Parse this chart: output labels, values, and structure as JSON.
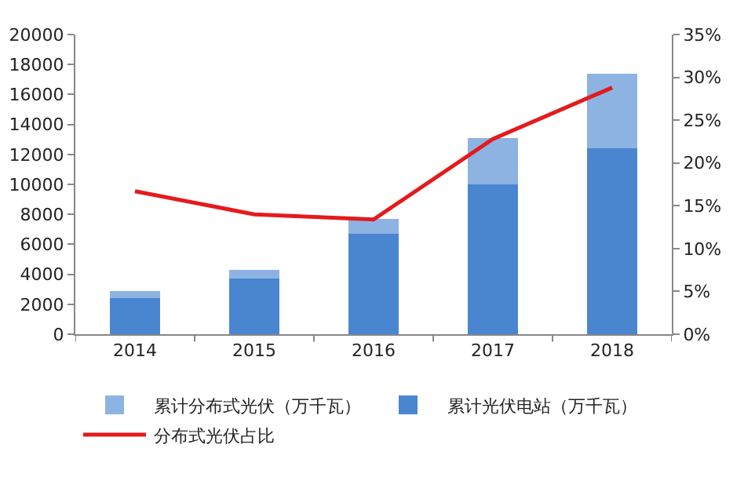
{
  "chart_data": {
    "type": "bar",
    "stacked": true,
    "categories": [
      "2014",
      "2015",
      "2016",
      "2017",
      "2018"
    ],
    "series": [
      {
        "name": "累计光伏电站（万千瓦）",
        "color": "#4a86d0",
        "values": [
          2400,
          3700,
          6700,
          10000,
          12400
        ]
      },
      {
        "name": "累计分布式光伏（万千瓦）",
        "color": "#8db3e2",
        "values": [
          500,
          600,
          1000,
          3100,
          5000
        ]
      },
      {
        "name": "分布式光伏占比",
        "type": "line",
        "axis": "y2",
        "color": "#e41a1c",
        "values": [
          16.7,
          14.0,
          13.4,
          22.8,
          28.8
        ]
      }
    ],
    "ylim": [
      0,
      20000
    ],
    "yticks": [
      0,
      2000,
      4000,
      6000,
      8000,
      10000,
      12000,
      14000,
      16000,
      18000,
      20000
    ],
    "y2lim": [
      0,
      35
    ],
    "y2ticks": [
      {
        "value": 0,
        "label": "0%"
      },
      {
        "value": 5,
        "label": "5%"
      },
      {
        "value": 10,
        "label": "10%"
      },
      {
        "value": 15,
        "label": "15%"
      },
      {
        "value": 20,
        "label": "20%"
      },
      {
        "value": 25,
        "label": "25%"
      },
      {
        "value": 30,
        "label": "30%"
      },
      {
        "value": 35,
        "label": "35%"
      }
    ],
    "grid": false,
    "legend": "bottom",
    "marker": "none",
    "line_style": "solid"
  }
}
